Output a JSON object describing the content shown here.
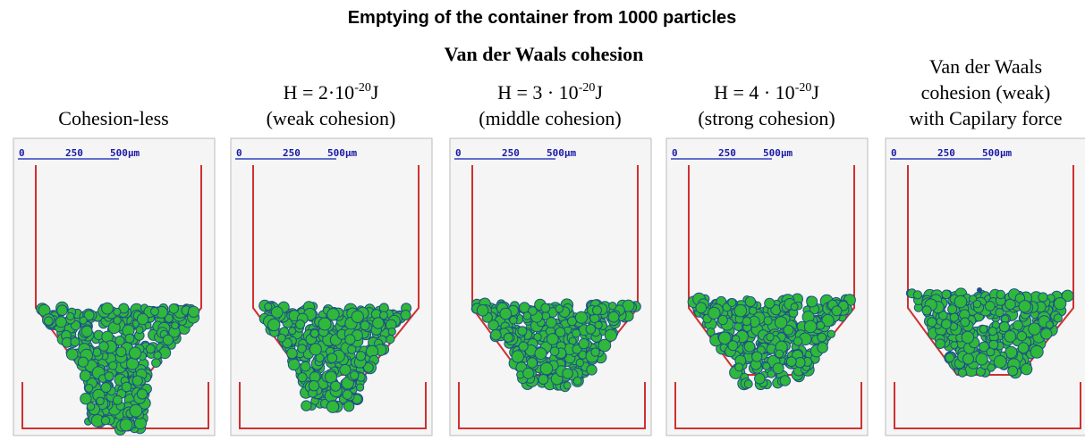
{
  "title": "Emptying of the container from 1000 particles",
  "subtitle": "Van der Waals cohesion",
  "panels": [
    {
      "heading": [
        "Cohesion-less"
      ],
      "scale": [
        "0",
        "250",
        "500µm"
      ]
    },
    {
      "heading": [
        {
          "prefix": "H = 2·10",
          "sup": "-20",
          "suffix": "J"
        },
        "(weak cohesion)"
      ],
      "scale": [
        "0",
        "250",
        "500µm"
      ]
    },
    {
      "heading": [
        {
          "prefix": "H = 3 · 10",
          "sup": "-20",
          "suffix": "J"
        },
        "(middle cohesion)"
      ],
      "scale": [
        "0",
        "250",
        "500µm"
      ]
    },
    {
      "heading": [
        {
          "prefix": "H = 4 · 10",
          "sup": "-20",
          "suffix": "J"
        },
        "(strong cohesion)"
      ],
      "scale": [
        "0",
        "250",
        "500µm"
      ]
    },
    {
      "heading": [
        "Van der Waals",
        "cohesion (weak)",
        "with Capilary force"
      ],
      "scale": [
        "0",
        "250",
        "500µm"
      ]
    }
  ]
}
